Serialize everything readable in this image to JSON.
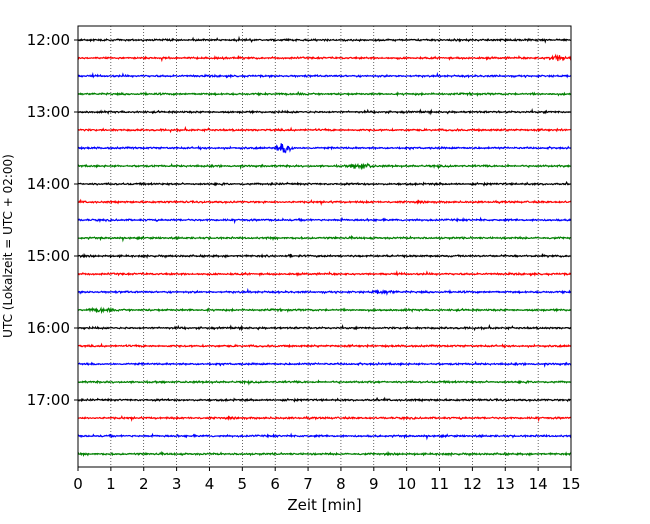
{
  "chart_data": {
    "type": "line",
    "subtype": "helicorder",
    "xlabel": "Zeit  [min]",
    "ylabel": "UTC (Lokalzeit = UTC + 02:00)",
    "xlim": [
      0,
      15
    ],
    "x_ticks": [
      0,
      1,
      2,
      3,
      4,
      5,
      6,
      7,
      8,
      9,
      10,
      11,
      12,
      13,
      14,
      15
    ],
    "y_ticks": [
      "12:00",
      "13:00",
      "14:00",
      "15:00",
      "16:00",
      "17:00"
    ],
    "grid": "vertical dotted at each minute",
    "trace_colors": [
      "#000000",
      "#ff0000",
      "#0000ff",
      "#008000"
    ],
    "trace_start_times": [
      "12:00",
      "12:15",
      "12:30",
      "12:45",
      "13:00",
      "13:15",
      "13:30",
      "13:45",
      "14:00",
      "14:15",
      "14:30",
      "14:45",
      "15:00",
      "15:15",
      "15:30",
      "15:45",
      "16:00",
      "16:15",
      "16:30",
      "16:45",
      "17:00",
      "17:15",
      "17:30",
      "17:45"
    ],
    "events": [
      {
        "trace": "13:30",
        "minute": 6.3,
        "amplitude": "large"
      },
      {
        "trace": "13:45",
        "minute": 8.6,
        "amplitude": "medium"
      },
      {
        "trace": "12:15",
        "minute": 14.6,
        "amplitude": "medium"
      },
      {
        "trace": "15:45",
        "minute": 0.7,
        "amplitude": "small"
      },
      {
        "trace": "15:30",
        "minute": 9.3,
        "amplitude": "small"
      }
    ]
  }
}
